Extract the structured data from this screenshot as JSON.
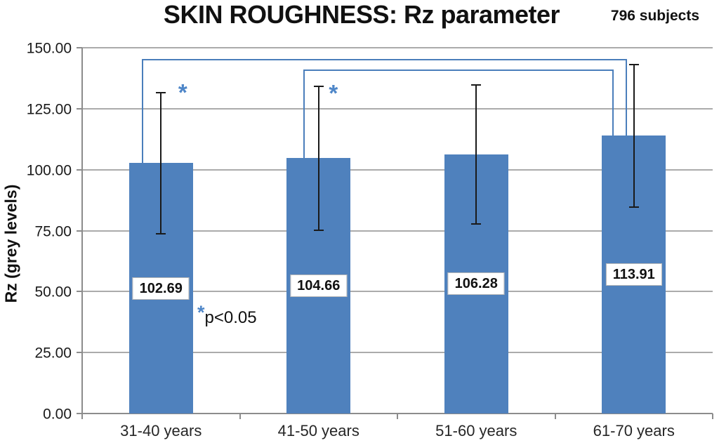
{
  "header": {
    "title": "SKIN ROUGHNESS: Rz parameter",
    "subjects_count": "796 subjects"
  },
  "annotation": {
    "star": "*",
    "text": "p<0.05"
  },
  "colors": {
    "bar": "#4f81bd",
    "bracket": "#4a7ebb",
    "star": "#4e86c8",
    "grid": "#ababab",
    "axis": "#8c8c8c",
    "error_bar": "#1a1a1a",
    "label_box_border": "#b9b9b9"
  },
  "chart_data": {
    "type": "bar",
    "title": "SKIN ROUGHNESS: Rz parameter",
    "subtitle": "796 subjects",
    "xlabel": "",
    "ylabel": "Rz (grey levels)",
    "categories": [
      "31-40 years",
      "41-50 years",
      "51-60 years",
      "61-70 years"
    ],
    "values": [
      102.69,
      104.66,
      106.28,
      113.91
    ],
    "value_labels": [
      "102.69",
      "104.66",
      "106.28",
      "113.91"
    ],
    "error_bars_plus_minus": [
      28.9,
      29.6,
      28.6,
      29.3
    ],
    "ylim": [
      0,
      150
    ],
    "ytick_step": 25,
    "ytick_labels": [
      "0.00",
      "25.00",
      "50.00",
      "75.00",
      "100.00",
      "125.00",
      "150.00"
    ],
    "grid": true,
    "legend": "none",
    "significance_brackets": [
      {
        "from_bar": 0,
        "to_bar": 3,
        "y_value": 145.0,
        "from_dx": -26,
        "to_dx": -11
      },
      {
        "from_bar": 1,
        "to_bar": 3,
        "y_value": 140.8,
        "from_dx": -21,
        "to_dx": -30
      }
    ],
    "significance_stars": [
      {
        "bar": 0,
        "dx": 31,
        "y_value": 133.0
      },
      {
        "bar": 1,
        "dx": 21,
        "y_value": 132.7
      }
    ],
    "significance_note": "*p<0.05"
  }
}
